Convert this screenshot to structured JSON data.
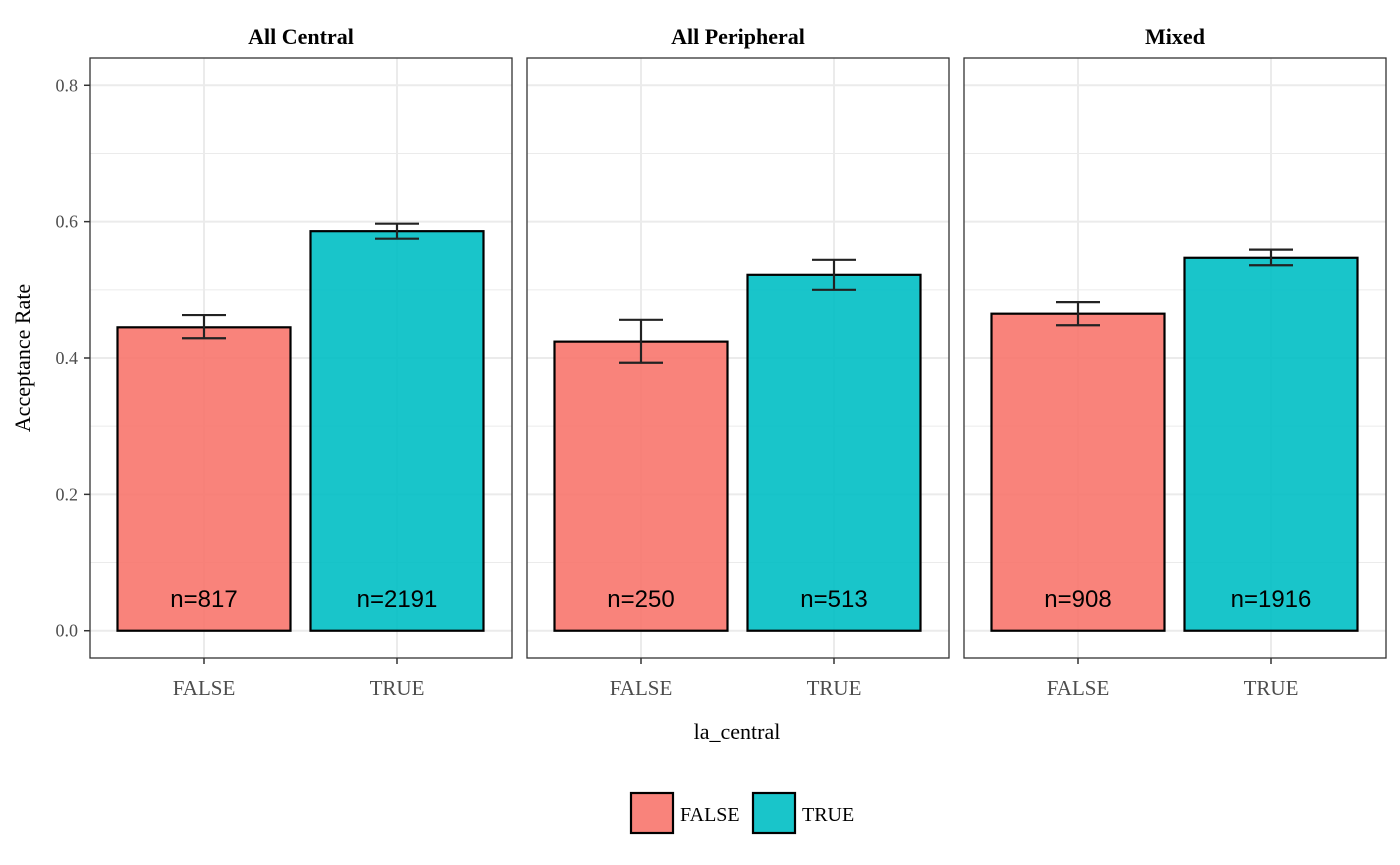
{
  "chart_data": {
    "type": "bar",
    "facet_variable": "",
    "xlabel": "la_central",
    "ylabel": "Acceptance Rate",
    "ylim": [
      -0.04,
      0.84
    ],
    "yticks": [
      0.0,
      0.2,
      0.4,
      0.6,
      0.8
    ],
    "ytick_labels": [
      "0.0",
      "0.2",
      "0.4",
      "0.6",
      "0.8"
    ],
    "categories": [
      "FALSE",
      "TRUE"
    ],
    "grid": true,
    "legend": {
      "position": "bottom",
      "title": "",
      "entries": [
        {
          "label": "FALSE",
          "color": "#F8766D"
        },
        {
          "label": "TRUE",
          "color": "#00BFC4"
        }
      ]
    },
    "panels": [
      {
        "title": "All Central",
        "bars": [
          {
            "category": "FALSE",
            "value": 0.445,
            "err_low": 0.429,
            "err_high": 0.463,
            "label": "n=817"
          },
          {
            "category": "TRUE",
            "value": 0.586,
            "err_low": 0.575,
            "err_high": 0.597,
            "label": "n=2191"
          }
        ]
      },
      {
        "title": "All Peripheral",
        "bars": [
          {
            "category": "FALSE",
            "value": 0.424,
            "err_low": 0.393,
            "err_high": 0.456,
            "label": "n=250"
          },
          {
            "category": "TRUE",
            "value": 0.522,
            "err_low": 0.5,
            "err_high": 0.544,
            "label": "n=513"
          }
        ]
      },
      {
        "title": "Mixed",
        "bars": [
          {
            "category": "FALSE",
            "value": 0.465,
            "err_low": 0.448,
            "err_high": 0.482,
            "label": "n=908"
          },
          {
            "category": "TRUE",
            "value": 0.547,
            "err_low": 0.536,
            "err_high": 0.559,
            "label": "n=1916"
          }
        ]
      }
    ]
  }
}
